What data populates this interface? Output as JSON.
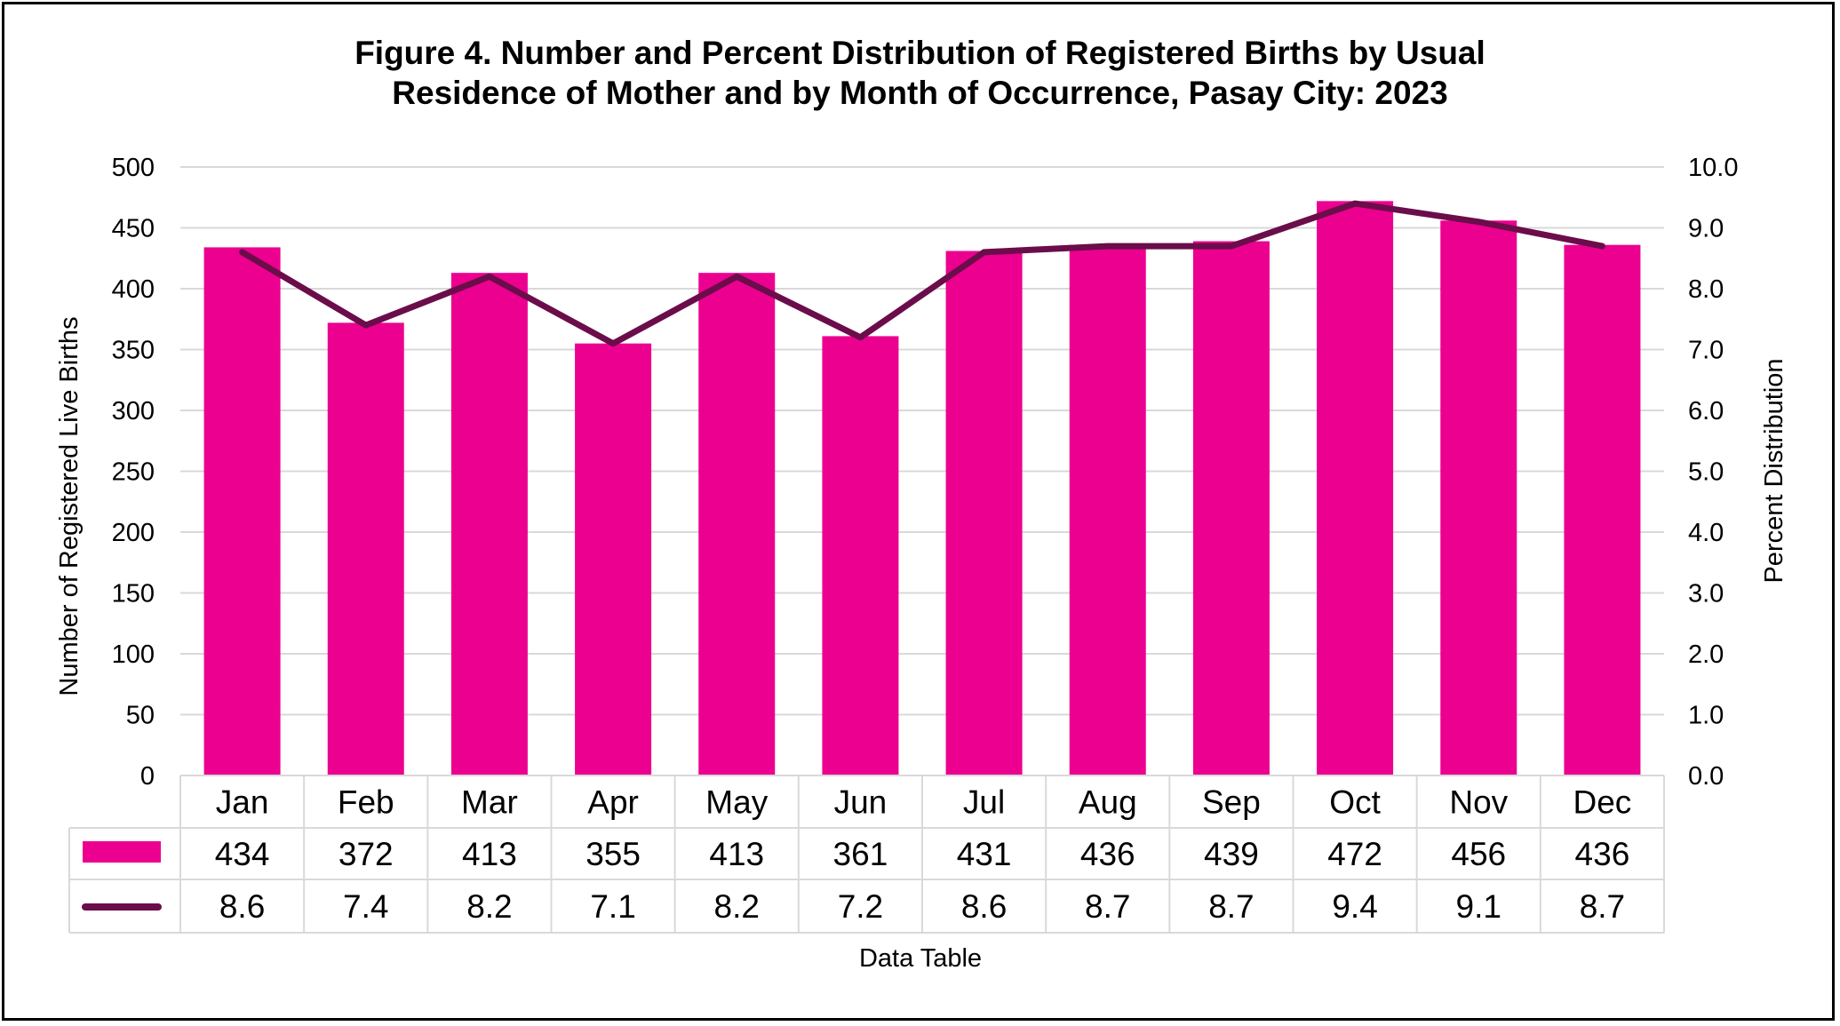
{
  "chart_data": {
    "type": "bar",
    "title": "Figure 4. Number and Percent Distribution of Registered Births by Usual",
    "title_line2": "Residence of Mother and by Month of Occurrence, Pasay City: 2023",
    "categories": [
      "Jan",
      "Feb",
      "Mar",
      "Apr",
      "May",
      "Jun",
      "Jul",
      "Aug",
      "Sep",
      "Oct",
      "Nov",
      "Dec"
    ],
    "series": [
      {
        "type": "bar",
        "axis": "left",
        "color": "#EC0090",
        "values": [
          434,
          372,
          413,
          355,
          413,
          361,
          431,
          436,
          439,
          472,
          456,
          436
        ],
        "labels": [
          "434",
          "372",
          "413",
          "355",
          "413",
          "361",
          "431",
          "436",
          "439",
          "472",
          "456",
          "436"
        ]
      },
      {
        "type": "line",
        "axis": "right",
        "color": "#6B0D4A",
        "values": [
          8.6,
          7.4,
          8.2,
          7.1,
          8.2,
          7.2,
          8.6,
          8.7,
          8.7,
          9.4,
          9.1,
          8.7
        ],
        "labels": [
          "8.6",
          "7.4",
          "8.2",
          "7.1",
          "8.2",
          "7.2",
          "8.6",
          "8.7",
          "8.7",
          "9.4",
          "9.1",
          "8.7"
        ]
      }
    ],
    "ylabel": "Number of Registered Live Births",
    "ylabel_right": "Percent Distribution",
    "ylim": [
      0,
      500
    ],
    "ylim_right": [
      0,
      10
    ],
    "yticks": [
      "0",
      "50",
      "100",
      "150",
      "200",
      "250",
      "300",
      "350",
      "400",
      "450",
      "500"
    ],
    "yticks_right": [
      "0.0",
      "1.0",
      "2.0",
      "3.0",
      "4.0",
      "5.0",
      "6.0",
      "7.0",
      "8.0",
      "9.0",
      "10.0"
    ],
    "xlabel": "Data Table",
    "grid": true,
    "data_table": true
  }
}
